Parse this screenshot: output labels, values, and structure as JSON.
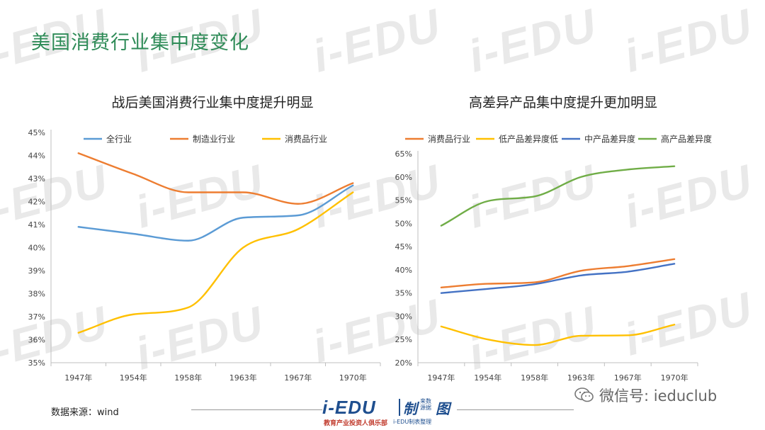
{
  "slide_title": "美国消费行业集中度变化",
  "watermark": "i-EDU",
  "source_text": "数据来源：wind",
  "logo": {
    "main": "i-EDU",
    "cn": "制",
    "small": "来数源据",
    "tu": "图",
    "sub1": "教育产业投资人俱乐部",
    "sub2": "i-EDU制表整理"
  },
  "wechat_label": "微信号: ieduclub",
  "colors": {
    "title_green": "#2e8b57",
    "blue": "#5b9bd5",
    "orange": "#ed7d31",
    "yellow": "#ffc000",
    "darkblue": "#4472c4",
    "green": "#70ad47"
  },
  "chart_data": [
    {
      "type": "line",
      "title": "战后美国消费行业集中度提升明显",
      "categories": [
        "1947年",
        "1954年",
        "1958年",
        "1963年",
        "1967年",
        "1970年"
      ],
      "ylim": [
        35,
        45
      ],
      "yticks": [
        35,
        36,
        37,
        38,
        39,
        40,
        41,
        42,
        43,
        44,
        45
      ],
      "y_format": "percent",
      "legend_position": "top",
      "series": [
        {
          "name": "全行业",
          "color": "#5b9bd5",
          "values": [
            40.9,
            40.6,
            40.3,
            41.3,
            41.4,
            42.7
          ]
        },
        {
          "name": "制造业行业",
          "color": "#ed7d31",
          "values": [
            44.1,
            43.2,
            42.4,
            42.4,
            41.9,
            42.8
          ]
        },
        {
          "name": "消费品行业",
          "color": "#ffc000",
          "values": [
            36.3,
            37.1,
            37.4,
            40.0,
            40.8,
            42.4
          ]
        }
      ]
    },
    {
      "type": "line",
      "title": "高差异产品集中度提升更加明显",
      "categories": [
        "1947年",
        "1954年",
        "1958年",
        "1963年",
        "1967年",
        "1970年"
      ],
      "ylim": [
        20,
        65
      ],
      "yticks": [
        20,
        25,
        30,
        35,
        40,
        45,
        50,
        55,
        60,
        65
      ],
      "y_format": "percent",
      "legend_position": "top",
      "series": [
        {
          "name": "消费品行业",
          "color": "#ed7d31",
          "values": [
            36.2,
            37.0,
            37.3,
            39.8,
            40.8,
            42.3
          ]
        },
        {
          "name": "低产品差异度低",
          "color": "#ffc000",
          "values": [
            27.8,
            25.0,
            23.8,
            25.8,
            25.9,
            28.2
          ]
        },
        {
          "name": "中产品差异度",
          "color": "#4472c4",
          "values": [
            35.0,
            35.9,
            36.9,
            38.8,
            39.6,
            41.3
          ]
        },
        {
          "name": "高产品差异度",
          "color": "#70ad47",
          "values": [
            49.5,
            54.8,
            55.8,
            60.0,
            61.6,
            62.3
          ]
        }
      ]
    }
  ]
}
